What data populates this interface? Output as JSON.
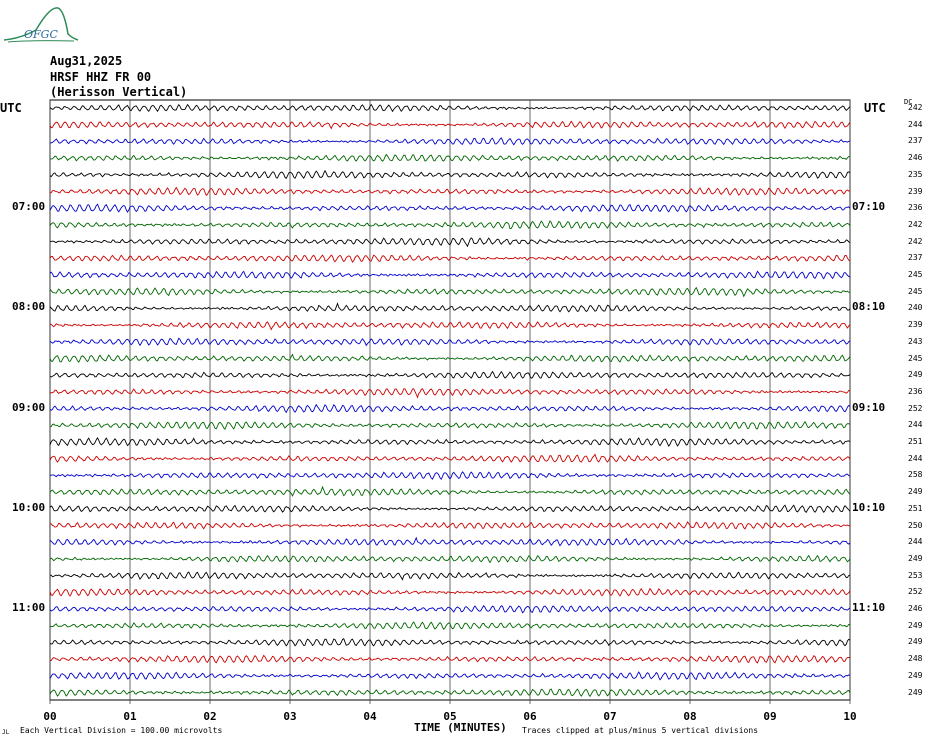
{
  "header": {
    "logo_text": "OFGC",
    "date": "Aug31,2025",
    "channel": "HRSF HHZ FR 00",
    "station": "(Herisson Vertical)",
    "utc_left": "UTC",
    "utc_right": "UTC",
    "dc_label": "DC"
  },
  "footer": {
    "vertical_division": "Each Vertical Division =  100.00 microvolts",
    "clip_note": "Traces clipped at plus/minus 5 vertical divisions",
    "corner_mark": "JL"
  },
  "colors": {
    "trace_cycle": [
      "#000000",
      "#cc0000",
      "#0000cc",
      "#006600"
    ],
    "grid": "#000000",
    "logo": "#2e8b57"
  },
  "chart_data": {
    "type": "line",
    "title": "HRSF HHZ FR 00 (Herisson Vertical)",
    "xlabel": "TIME (MINUTES)",
    "ylabel": "",
    "x_ticks": [
      "00",
      "01",
      "02",
      "03",
      "04",
      "05",
      "06",
      "07",
      "08",
      "09",
      "10"
    ],
    "xlim": [
      0,
      10
    ],
    "minutes_per_line": 10,
    "grid": true,
    "hour_labels_left": [
      {
        "line": 6,
        "label": "07:00"
      },
      {
        "line": 12,
        "label": "08:00"
      },
      {
        "line": 18,
        "label": "09:00"
      },
      {
        "line": 24,
        "label": "10:00"
      },
      {
        "line": 30,
        "label": "11:00"
      }
    ],
    "hour_labels_right": [
      {
        "line": 6,
        "label": "07:10"
      },
      {
        "line": 12,
        "label": "08:10"
      },
      {
        "line": 18,
        "label": "09:10"
      },
      {
        "line": 24,
        "label": "10:10"
      },
      {
        "line": 30,
        "label": "11:10"
      }
    ],
    "dc_values": [
      242,
      244,
      237,
      246,
      235,
      239,
      236,
      242,
      242,
      237,
      245,
      245,
      240,
      239,
      243,
      245,
      249,
      236,
      252,
      244,
      251,
      244,
      258,
      249,
      251,
      250,
      244,
      249,
      253,
      252,
      246,
      249,
      249,
      248,
      249,
      249
    ]
  }
}
